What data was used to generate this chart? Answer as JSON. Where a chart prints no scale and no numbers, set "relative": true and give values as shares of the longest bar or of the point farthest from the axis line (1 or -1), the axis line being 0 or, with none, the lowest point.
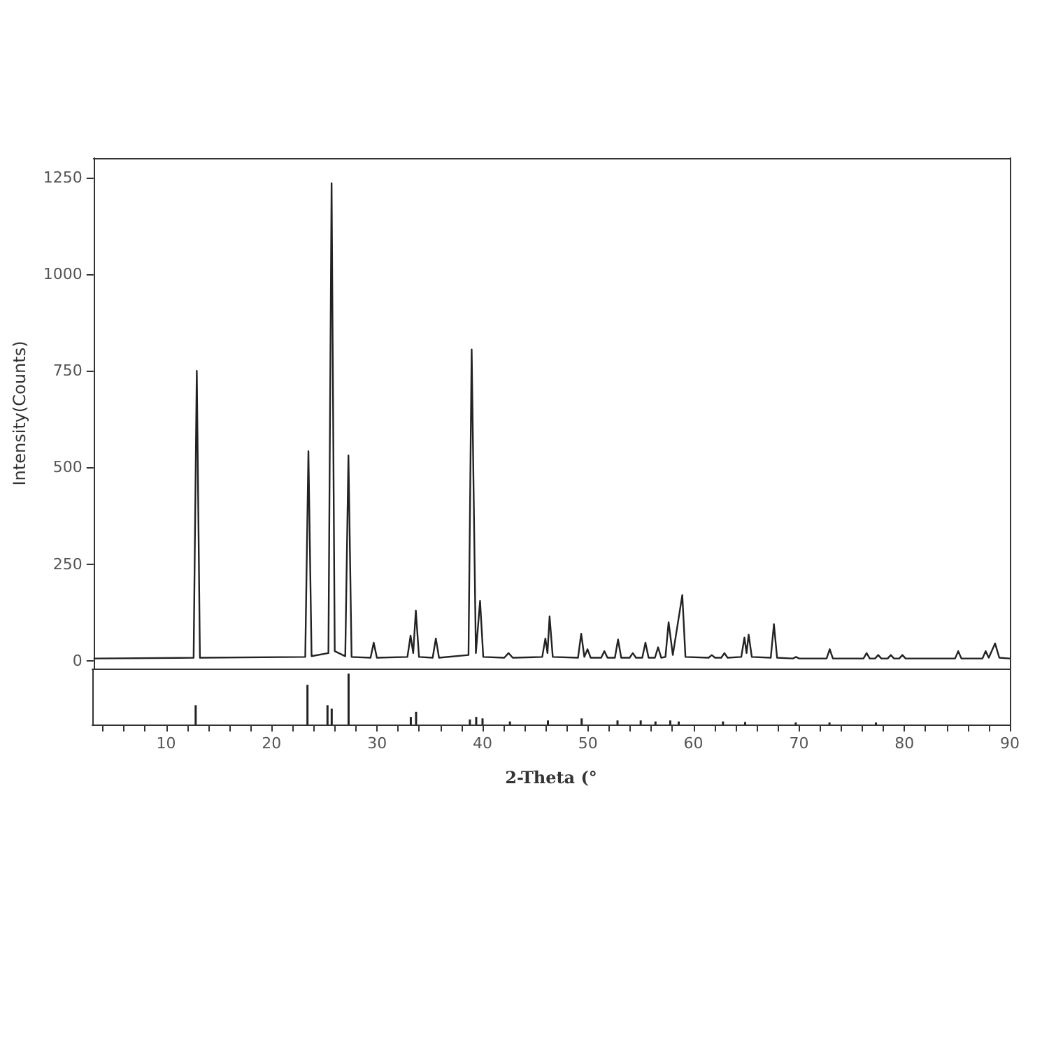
{
  "chart_data": [
    {
      "type": "line",
      "ylabel": "Intensity(Counts)",
      "xlim": [
        3,
        90
      ],
      "ylim": [
        -20,
        1300
      ],
      "yticks": [
        0,
        250,
        500,
        750,
        1000,
        1250
      ],
      "tick_labels": "y",
      "grid": false,
      "marker": "none",
      "line_style": "solid",
      "series": [
        {
          "color": "#222222",
          "x": [
            3,
            12.5,
            12.8,
            13.1,
            23.1,
            23.4,
            23.7,
            25.3,
            25.6,
            25.9,
            26.9,
            27.2,
            27.5,
            29.3,
            29.6,
            29.9,
            32.8,
            33.1,
            33.35,
            33.6,
            33.9,
            35.2,
            35.5,
            35.8,
            38.6,
            38.9,
            39.3,
            39.7,
            40.0,
            42.0,
            42.4,
            42.8,
            45.6,
            45.9,
            46.1,
            46.3,
            46.6,
            49.0,
            49.3,
            49.6,
            49.9,
            50.2,
            51.2,
            51.5,
            51.8,
            52.5,
            52.8,
            53.1,
            53.9,
            54.2,
            54.5,
            55.1,
            55.4,
            55.7,
            56.3,
            56.6,
            56.9,
            57.3,
            57.6,
            58.0,
            58.9,
            59.2,
            61.4,
            61.7,
            62.0,
            62.6,
            62.9,
            63.2,
            64.5,
            64.8,
            65.0,
            65.2,
            65.5,
            67.3,
            67.6,
            67.9,
            69.4,
            69.7,
            70.0,
            72.6,
            72.9,
            73.2,
            76.1,
            76.4,
            76.7,
            77.2,
            77.5,
            77.8,
            78.4,
            78.7,
            79.0,
            79.5,
            79.8,
            80.1,
            84.8,
            85.1,
            85.4,
            87.4,
            87.7,
            88.0,
            88.6,
            89.0,
            90
          ],
          "values": [
            6,
            8,
            750,
            8,
            10,
            542,
            12,
            20,
            1235,
            25,
            12,
            531,
            10,
            8,
            47,
            8,
            10,
            65,
            20,
            130,
            10,
            8,
            58,
            8,
            15,
            805,
            20,
            155,
            10,
            8,
            20,
            8,
            10,
            58,
            20,
            115,
            10,
            8,
            70,
            10,
            30,
            8,
            8,
            25,
            8,
            8,
            55,
            8,
            8,
            20,
            8,
            8,
            47,
            8,
            8,
            35,
            8,
            10,
            100,
            15,
            170,
            10,
            8,
            15,
            8,
            8,
            20,
            8,
            10,
            60,
            20,
            68,
            10,
            8,
            95,
            8,
            6,
            10,
            6,
            6,
            30,
            6,
            6,
            20,
            6,
            6,
            15,
            6,
            6,
            15,
            6,
            6,
            15,
            6,
            6,
            25,
            6,
            6,
            25,
            8,
            45,
            8,
            6
          ]
        }
      ]
    },
    {
      "type": "bar",
      "relative": true,
      "xlabel": "2-Theta (°",
      "xlim": [
        3,
        90
      ],
      "tick_labels": "x",
      "grid": false,
      "xticks": [
        {
          "value": 4,
          "label": null
        },
        {
          "value": 6,
          "label": null
        },
        {
          "value": 8,
          "label": null
        },
        10,
        {
          "value": 12,
          "label": null
        },
        {
          "value": 14,
          "label": null
        },
        {
          "value": 16,
          "label": null
        },
        {
          "value": 18,
          "label": null
        },
        20,
        {
          "value": 22,
          "label": null
        },
        {
          "value": 24,
          "label": null
        },
        {
          "value": 26,
          "label": null
        },
        {
          "value": 28,
          "label": null
        },
        30,
        {
          "value": 32,
          "label": null
        },
        {
          "value": 34,
          "label": null
        },
        {
          "value": 36,
          "label": null
        },
        {
          "value": 38,
          "label": null
        },
        40,
        {
          "value": 42,
          "label": null
        },
        {
          "value": 44,
          "label": null
        },
        {
          "value": 46,
          "label": null
        },
        {
          "value": 48,
          "label": null
        },
        50,
        {
          "value": 52,
          "label": null
        },
        {
          "value": 54,
          "label": null
        },
        {
          "value": 56,
          "label": null
        },
        {
          "value": 58,
          "label": null
        },
        60,
        {
          "value": 62,
          "label": null
        },
        {
          "value": 64,
          "label": null
        },
        {
          "value": 66,
          "label": null
        },
        {
          "value": 68,
          "label": null
        },
        70,
        {
          "value": 72,
          "label": null
        },
        {
          "value": 74,
          "label": null
        },
        {
          "value": 76,
          "label": null
        },
        {
          "value": 78,
          "label": null
        },
        80,
        {
          "value": 82,
          "label": null
        },
        {
          "value": 84,
          "label": null
        },
        {
          "value": 86,
          "label": null
        },
        {
          "value": 88,
          "label": null
        },
        90
      ],
      "series": [
        {
          "color": "#222222",
          "x": [
            12.8,
            23.4,
            25.3,
            25.7,
            27.3,
            33.2,
            33.7,
            38.8,
            39.4,
            40.0,
            42.6,
            46.2,
            49.4,
            52.8,
            55.0,
            56.4,
            57.8,
            58.6,
            62.8,
            64.9,
            69.7,
            72.9,
            77.3
          ],
          "values": [
            0.38,
            0.78,
            0.38,
            0.31,
            1,
            0.15,
            0.25,
            0.1,
            0.15,
            0.12,
            0.06,
            0.08,
            0.12,
            0.08,
            0.08,
            0.06,
            0.08,
            0.06,
            0.06,
            0.05,
            0.04,
            0.04,
            0.04
          ]
        }
      ]
    }
  ]
}
